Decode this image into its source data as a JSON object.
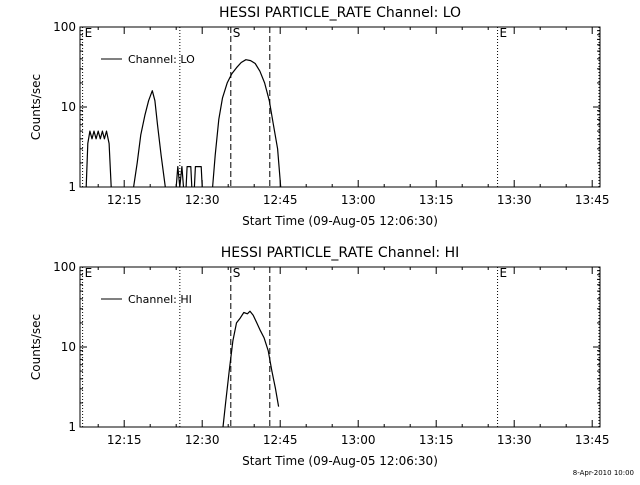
{
  "footer": {
    "date_stamp": "8-Apr-2010 10:00"
  },
  "chart_data": [
    {
      "type": "line",
      "title": "HESSI PARTICLE_RATE Channel: LO",
      "xlabel": "Start Time (09-Aug-05 12:06:30)",
      "ylabel": "Counts/sec",
      "x_unit": "minutes since 12:06:30",
      "xlim": [
        0,
        100
      ],
      "ylim": [
        1,
        100
      ],
      "y_scale": "log",
      "x_ticks": [
        {
          "value": 8.5,
          "label": "12:15"
        },
        {
          "value": 23.5,
          "label": "12:30"
        },
        {
          "value": 38.5,
          "label": "12:45"
        },
        {
          "value": 53.5,
          "label": "13:00"
        },
        {
          "value": 68.5,
          "label": "13:15"
        },
        {
          "value": 83.5,
          "label": "13:30"
        },
        {
          "value": 98.5,
          "label": "13:45"
        }
      ],
      "y_ticks": [
        {
          "value": 1,
          "label": "1"
        },
        {
          "value": 10,
          "label": "10"
        },
        {
          "value": 100,
          "label": "100"
        }
      ],
      "grid": false,
      "legend": {
        "position": "top-left",
        "entries": [
          "Channel: LO"
        ]
      },
      "markers": [
        {
          "x": 0.5,
          "label": "E",
          "style": "dotted"
        },
        {
          "x": 19.2,
          "label": "",
          "style": "dotted"
        },
        {
          "x": 29.0,
          "label": "S",
          "style": "dashed"
        },
        {
          "x": 36.5,
          "label": "",
          "style": "dashed"
        },
        {
          "x": 80.3,
          "label": "E",
          "style": "dotted"
        },
        {
          "x": 99.8,
          "label": "",
          "style": "dotted"
        }
      ],
      "series": [
        {
          "name": "Channel: LO",
          "segments": [
            [
              [
                1.2,
                1.0
              ],
              [
                1.5,
                3.5
              ],
              [
                1.9,
                5.0
              ],
              [
                2.3,
                4.0
              ],
              [
                2.7,
                5.0
              ],
              [
                3.1,
                4.0
              ],
              [
                3.5,
                5.0
              ],
              [
                3.9,
                4.0
              ],
              [
                4.3,
                5.0
              ],
              [
                4.7,
                4.0
              ],
              [
                5.1,
                5.0
              ],
              [
                5.6,
                3.5
              ],
              [
                6.0,
                1.0
              ]
            ],
            [
              [
                10.3,
                1.0
              ],
              [
                11.0,
                2.0
              ],
              [
                11.7,
                4.5
              ],
              [
                12.5,
                8.0
              ],
              [
                13.2,
                12.0
              ],
              [
                13.9,
                16.0
              ],
              [
                14.4,
                12.0
              ],
              [
                14.9,
                6.0
              ],
              [
                15.6,
                2.5
              ],
              [
                16.4,
                1.0
              ]
            ],
            [
              [
                18.5,
                1.0
              ],
              [
                18.8,
                1.8
              ],
              [
                19.2,
                1.0
              ],
              [
                19.6,
                1.8
              ],
              [
                19.9,
                1.0
              ]
            ],
            [
              [
                20.4,
                1.0
              ],
              [
                20.6,
                1.8
              ],
              [
                21.3,
                1.8
              ],
              [
                21.5,
                1.0
              ]
            ],
            [
              [
                22.0,
                1.0
              ],
              [
                22.2,
                1.8
              ],
              [
                23.3,
                1.8
              ],
              [
                23.5,
                1.0
              ]
            ],
            [
              [
                25.5,
                1.0
              ],
              [
                26.0,
                2.5
              ],
              [
                26.7,
                7.0
              ],
              [
                27.4,
                13.0
              ],
              [
                28.3,
                20.0
              ],
              [
                29.2,
                26.0
              ],
              [
                30.1,
                31.0
              ],
              [
                31.0,
                36.0
              ],
              [
                31.9,
                39.0
              ],
              [
                32.8,
                38.0
              ],
              [
                33.7,
                35.0
              ],
              [
                34.6,
                28.0
              ],
              [
                35.5,
                20.0
              ],
              [
                36.4,
                12.0
              ],
              [
                37.2,
                6.0
              ],
              [
                38.0,
                3.0
              ],
              [
                38.6,
                1.0
              ]
            ]
          ]
        }
      ]
    },
    {
      "type": "line",
      "title": "HESSI PARTICLE_RATE Channel: HI",
      "xlabel": "Start Time (09-Aug-05 12:06:30)",
      "ylabel": "Counts/sec",
      "x_unit": "minutes since 12:06:30",
      "xlim": [
        0,
        100
      ],
      "ylim": [
        1,
        100
      ],
      "y_scale": "log",
      "x_ticks": [
        {
          "value": 8.5,
          "label": "12:15"
        },
        {
          "value": 23.5,
          "label": "12:30"
        },
        {
          "value": 38.5,
          "label": "12:45"
        },
        {
          "value": 53.5,
          "label": "13:00"
        },
        {
          "value": 68.5,
          "label": "13:15"
        },
        {
          "value": 83.5,
          "label": "13:30"
        },
        {
          "value": 98.5,
          "label": "13:45"
        }
      ],
      "y_ticks": [
        {
          "value": 1,
          "label": "1"
        },
        {
          "value": 10,
          "label": "10"
        },
        {
          "value": 100,
          "label": "100"
        }
      ],
      "grid": false,
      "legend": {
        "position": "top-left",
        "entries": [
          "Channel: HI"
        ]
      },
      "markers": [
        {
          "x": 0.5,
          "label": "E",
          "style": "dotted"
        },
        {
          "x": 19.2,
          "label": "",
          "style": "dotted"
        },
        {
          "x": 29.0,
          "label": "S",
          "style": "dashed"
        },
        {
          "x": 36.5,
          "label": "",
          "style": "dashed"
        },
        {
          "x": 80.3,
          "label": "E",
          "style": "dotted"
        },
        {
          "x": 99.8,
          "label": "",
          "style": "dotted"
        }
      ],
      "series": [
        {
          "name": "Channel: HI",
          "segments": [
            [
              [
                27.5,
                1.0
              ],
              [
                28.0,
                2.0
              ],
              [
                28.7,
                5.0
              ],
              [
                29.4,
                12.0
              ],
              [
                30.1,
                20.0
              ],
              [
                30.8,
                23.0
              ],
              [
                31.5,
                27.0
              ],
              [
                32.2,
                26.0
              ],
              [
                32.7,
                28.0
              ],
              [
                33.3,
                25.0
              ],
              [
                34.0,
                20.0
              ],
              [
                34.7,
                16.0
              ],
              [
                35.4,
                13.0
              ],
              [
                36.2,
                9.0
              ],
              [
                36.9,
                5.0
              ],
              [
                37.6,
                3.0
              ],
              [
                38.2,
                1.8
              ]
            ]
          ]
        }
      ]
    }
  ]
}
